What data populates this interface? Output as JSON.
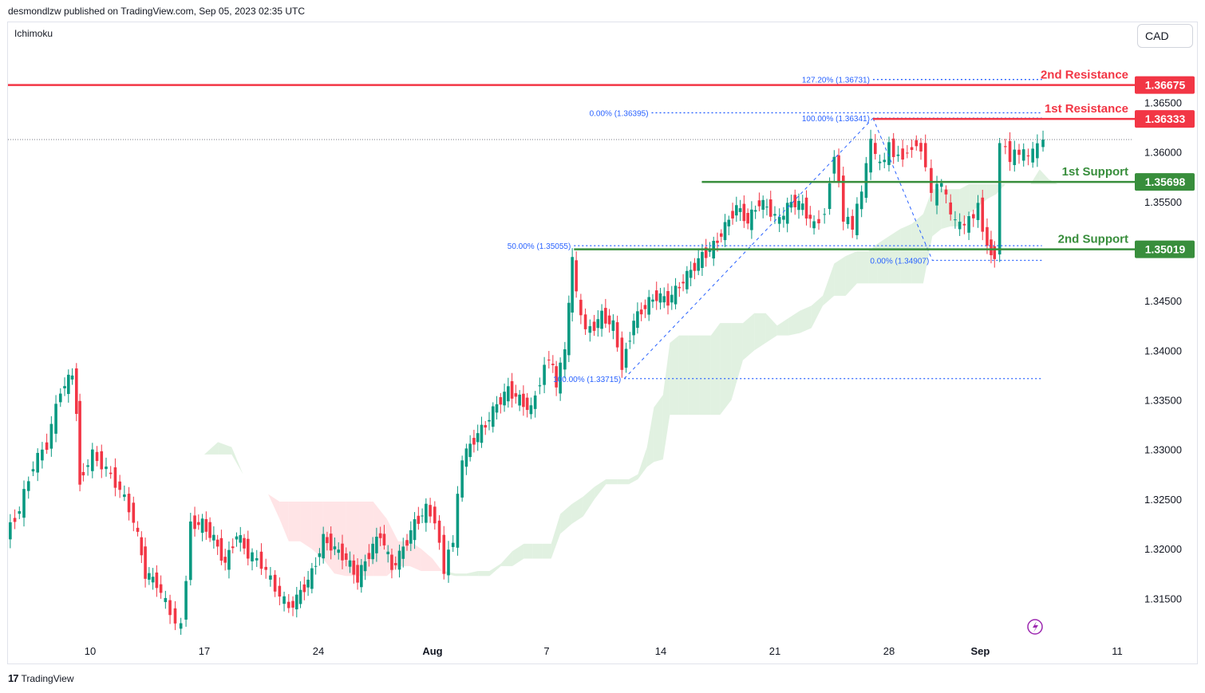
{
  "header": {
    "published_by": "desmondlzw published on TradingView.com, Sep 05, 2023 02:35 UTC"
  },
  "indicator": "Ichimoku",
  "currency": "CAD",
  "footer": {
    "brand": "TradingView",
    "logo_glyph": "17"
  },
  "colors": {
    "up": "#089981",
    "down": "#f23645",
    "resistance": "#f23645",
    "support": "#388e3c",
    "fib": "#2962ff",
    "cloud_bull": "#c8e6c9",
    "cloud_bear": "#ffcdd2"
  },
  "chart_data": {
    "type": "candlestick",
    "symbol_quote": "CAD",
    "ylim": [
      1.311,
      1.3705
    ],
    "y_ticks": [
      "1.31500",
      "1.32000",
      "1.32500",
      "1.33000",
      "1.33500",
      "1.34000",
      "1.34500",
      "1.35500",
      "1.36000",
      "1.36500"
    ],
    "x_ticks": [
      {
        "label": "10",
        "pos": 0.0
      },
      {
        "label": "17",
        "pos": 5.0
      },
      {
        "label": "24",
        "pos": 10.0
      },
      {
        "label": "Aug",
        "pos": 15.0
      },
      {
        "label": "7",
        "pos": 20.0
      },
      {
        "label": "14",
        "pos": 25.0
      },
      {
        "label": "21",
        "pos": 30.0
      },
      {
        "label": "28",
        "pos": 35.0
      },
      {
        "label": "Sep",
        "pos": 39.0
      },
      {
        "label": "11",
        "pos": 45.0
      }
    ],
    "x_range": [
      -3.6,
      45.7
    ],
    "price_levels": [
      {
        "name": "2nd Resistance",
        "value": 1.36675,
        "label": "1.36675",
        "kind": "resistance"
      },
      {
        "name": "1st Resistance",
        "value": 1.36333,
        "label": "1.36333",
        "kind": "resistance"
      },
      {
        "name": "1st Support",
        "value": 1.35698,
        "label": "1.35698",
        "kind": "support"
      },
      {
        "name": "2nd Support",
        "value": 1.35019,
        "label": "1.35019",
        "kind": "support"
      }
    ],
    "fib_labels": [
      {
        "text": "127.20% (1.36731)",
        "value": 1.36731,
        "x": [
          34.3,
          41.7
        ]
      },
      {
        "text": "0.00% (1.36395)",
        "value": 1.36395,
        "x": [
          24.6,
          41.7
        ]
      },
      {
        "text": "100.00% (1.36341)",
        "value": 1.36341,
        "x": [
          34.3,
          41.7
        ]
      },
      {
        "text": "50.00% (1.35055)",
        "value": 1.35055,
        "x": [
          21.2,
          41.7
        ]
      },
      {
        "text": "0.00% (1.34907)",
        "value": 1.34907,
        "x": [
          36.9,
          41.7
        ]
      },
      {
        "text": "100.00% (1.33715)",
        "value": 1.33715,
        "x": [
          23.4,
          41.7
        ]
      }
    ],
    "current_price": 1.36125,
    "close_series": [
      {
        "t": -3.6,
        "v": 1.3215
      },
      {
        "t": -3.0,
        "v": 1.324
      },
      {
        "t": -2.4,
        "v": 1.3285
      },
      {
        "t": -1.8,
        "v": 1.3305
      },
      {
        "t": -1.2,
        "v": 1.336
      },
      {
        "t": -0.7,
        "v": 1.3375
      },
      {
        "t": -0.5,
        "v": 1.334
      },
      {
        "t": -0.4,
        "v": 1.327
      },
      {
        "t": 0.2,
        "v": 1.3295
      },
      {
        "t": 0.8,
        "v": 1.328
      },
      {
        "t": 1.4,
        "v": 1.326
      },
      {
        "t": 2.0,
        "v": 1.323
      },
      {
        "t": 2.5,
        "v": 1.3175
      },
      {
        "t": 3.0,
        "v": 1.3165
      },
      {
        "t": 3.6,
        "v": 1.3135
      },
      {
        "t": 4.1,
        "v": 1.312
      },
      {
        "t": 4.5,
        "v": 1.3225
      },
      {
        "t": 5.0,
        "v": 1.3225
      },
      {
        "t": 5.5,
        "v": 1.321
      },
      {
        "t": 6.0,
        "v": 1.3185
      },
      {
        "t": 6.5,
        "v": 1.3215
      },
      {
        "t": 7.0,
        "v": 1.3195
      },
      {
        "t": 7.6,
        "v": 1.3185
      },
      {
        "t": 8.2,
        "v": 1.316
      },
      {
        "t": 8.8,
        "v": 1.314
      },
      {
        "t": 9.3,
        "v": 1.3155
      },
      {
        "t": 9.8,
        "v": 1.3175
      },
      {
        "t": 10.3,
        "v": 1.321
      },
      {
        "t": 10.8,
        "v": 1.32
      },
      {
        "t": 11.3,
        "v": 1.319
      },
      {
        "t": 11.8,
        "v": 1.317
      },
      {
        "t": 12.3,
        "v": 1.3195
      },
      {
        "t": 12.8,
        "v": 1.3215
      },
      {
        "t": 13.3,
        "v": 1.318
      },
      {
        "t": 13.8,
        "v": 1.32
      },
      {
        "t": 14.3,
        "v": 1.3225
      },
      {
        "t": 14.8,
        "v": 1.324
      },
      {
        "t": 15.2,
        "v": 1.323
      },
      {
        "t": 15.6,
        "v": 1.318
      },
      {
        "t": 16.0,
        "v": 1.321
      },
      {
        "t": 16.4,
        "v": 1.329
      },
      {
        "t": 16.9,
        "v": 1.331
      },
      {
        "t": 17.4,
        "v": 1.3325
      },
      {
        "t": 17.9,
        "v": 1.3345
      },
      {
        "t": 18.4,
        "v": 1.336
      },
      {
        "t": 18.9,
        "v": 1.335
      },
      {
        "t": 19.4,
        "v": 1.334
      },
      {
        "t": 19.8,
        "v": 1.337
      },
      {
        "t": 20.2,
        "v": 1.3395
      },
      {
        "t": 20.5,
        "v": 1.3365
      },
      {
        "t": 20.9,
        "v": 1.34
      },
      {
        "t": 21.2,
        "v": 1.349
      },
      {
        "t": 21.6,
        "v": 1.343
      },
      {
        "t": 22.0,
        "v": 1.342
      },
      {
        "t": 22.5,
        "v": 1.3435
      },
      {
        "t": 23.0,
        "v": 1.3425
      },
      {
        "t": 23.4,
        "v": 1.3385
      },
      {
        "t": 23.9,
        "v": 1.343
      },
      {
        "t": 24.4,
        "v": 1.3445
      },
      {
        "t": 24.9,
        "v": 1.3455
      },
      {
        "t": 25.4,
        "v": 1.345
      },
      {
        "t": 25.9,
        "v": 1.3465
      },
      {
        "t": 26.4,
        "v": 1.348
      },
      {
        "t": 26.9,
        "v": 1.3495
      },
      {
        "t": 27.4,
        "v": 1.3505
      },
      {
        "t": 27.9,
        "v": 1.3525
      },
      {
        "t": 28.4,
        "v": 1.3545
      },
      {
        "t": 28.9,
        "v": 1.353
      },
      {
        "t": 29.4,
        "v": 1.355
      },
      {
        "t": 29.9,
        "v": 1.354
      },
      {
        "t": 30.3,
        "v": 1.353
      },
      {
        "t": 30.8,
        "v": 1.355
      },
      {
        "t": 31.3,
        "v": 1.3545
      },
      {
        "t": 31.8,
        "v": 1.3525
      },
      {
        "t": 32.3,
        "v": 1.354
      },
      {
        "t": 32.7,
        "v": 1.36
      },
      {
        "t": 33.1,
        "v": 1.3535
      },
      {
        "t": 33.5,
        "v": 1.3525
      },
      {
        "t": 33.9,
        "v": 1.356
      },
      {
        "t": 34.3,
        "v": 1.361
      },
      {
        "t": 34.7,
        "v": 1.3585
      },
      {
        "t": 35.1,
        "v": 1.3605
      },
      {
        "t": 35.5,
        "v": 1.3595
      },
      {
        "t": 35.9,
        "v": 1.36
      },
      {
        "t": 36.3,
        "v": 1.361
      },
      {
        "t": 36.7,
        "v": 1.359
      },
      {
        "t": 37.0,
        "v": 1.3555
      },
      {
        "t": 37.4,
        "v": 1.357
      },
      {
        "t": 37.8,
        "v": 1.3535
      },
      {
        "t": 38.2,
        "v": 1.3525
      },
      {
        "t": 38.6,
        "v": 1.353
      },
      {
        "t": 39.0,
        "v": 1.3545
      },
      {
        "t": 39.4,
        "v": 1.3505
      },
      {
        "t": 39.7,
        "v": 1.3495
      },
      {
        "t": 40.0,
        "v": 1.361
      },
      {
        "t": 40.4,
        "v": 1.3595
      },
      {
        "t": 40.8,
        "v": 1.36
      },
      {
        "t": 41.2,
        "v": 1.3595
      },
      {
        "t": 41.6,
        "v": 1.3605
      },
      {
        "t": 41.9,
        "v": 1.36125
      }
    ]
  }
}
